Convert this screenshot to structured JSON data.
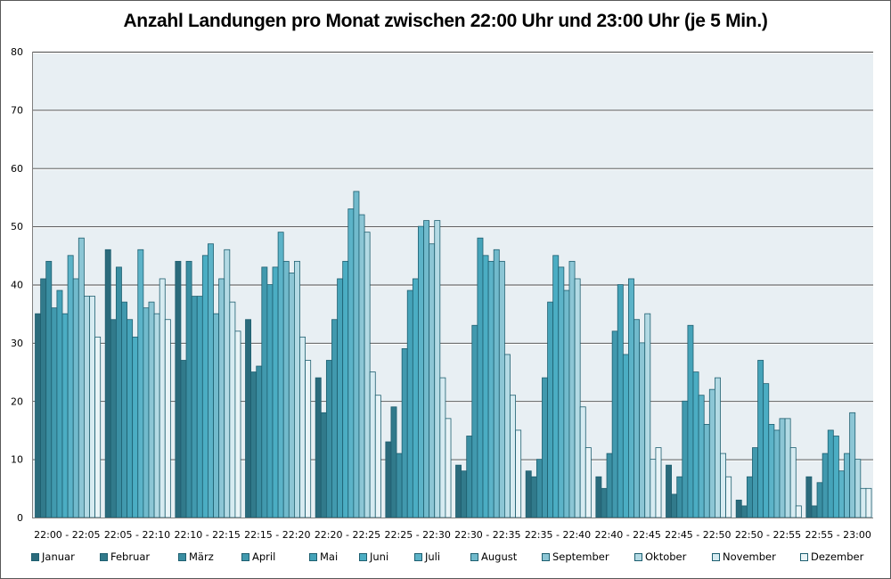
{
  "chart_data": {
    "type": "bar",
    "title": "Anzahl Landungen pro Monat zwischen 22:00 Uhr und 23:00 Uhr (je 5 Min.)",
    "xlabel": "",
    "ylabel": "",
    "ylim": [
      0,
      80
    ],
    "yticks": [
      0,
      10,
      20,
      30,
      40,
      50,
      60,
      70,
      80
    ],
    "grid": true,
    "legend_position": "bottom",
    "categories": [
      "22:00 - 22:05",
      "22:05 - 22:10",
      "22:10 - 22:15",
      "22:15 - 22:20",
      "22:20 - 22:25",
      "22:25 - 22:30",
      "22:30 - 22:35",
      "22:35 - 22:40",
      "22:40 - 22:45",
      "22:45 - 22:50",
      "22:50 - 22:55",
      "22:55 - 23:00"
    ],
    "series": [
      {
        "name": "Januar",
        "color": "#2b6b7c",
        "values": [
          35,
          46,
          44,
          34,
          24,
          13,
          9,
          8,
          7,
          9,
          3,
          7
        ]
      },
      {
        "name": "Februar",
        "color": "#317a8b",
        "values": [
          41,
          34,
          27,
          25,
          18,
          19,
          8,
          7,
          5,
          4,
          2,
          2
        ]
      },
      {
        "name": "März",
        "color": "#3a8ea2",
        "values": [
          44,
          43,
          44,
          26,
          27,
          11,
          14,
          10,
          11,
          7,
          7,
          6
        ]
      },
      {
        "name": "April",
        "color": "#4199ae",
        "values": [
          36,
          37,
          38,
          43,
          34,
          29,
          33,
          24,
          32,
          20,
          12,
          11
        ]
      },
      {
        "name": "Mai",
        "color": "#45a3b9",
        "values": [
          39,
          34,
          38,
          40,
          41,
          39,
          48,
          37,
          40,
          33,
          27,
          15
        ]
      },
      {
        "name": "Juni",
        "color": "#4badc3",
        "values": [
          35,
          31,
          45,
          43,
          44,
          41,
          45,
          45,
          28,
          25,
          23,
          14
        ]
      },
      {
        "name": "Juli",
        "color": "#5cb3c8",
        "values": [
          45,
          46,
          47,
          49,
          53,
          50,
          44,
          43,
          41,
          21,
          16,
          8
        ]
      },
      {
        "name": "August",
        "color": "#71bacc",
        "values": [
          41,
          36,
          35,
          44,
          56,
          51,
          46,
          39,
          34,
          16,
          15,
          11
        ]
      },
      {
        "name": "September",
        "color": "#8cc6d5",
        "values": [
          48,
          37,
          41,
          42,
          52,
          47,
          44,
          44,
          30,
          22,
          17,
          18
        ]
      },
      {
        "name": "Oktober",
        "color": "#b3dae4",
        "values": [
          38,
          35,
          46,
          44,
          49,
          51,
          28,
          41,
          35,
          24,
          17,
          10
        ]
      },
      {
        "name": "November",
        "color": "#d6ebf1",
        "values": [
          38,
          41,
          37,
          31,
          25,
          24,
          21,
          19,
          10,
          11,
          12,
          5
        ]
      },
      {
        "name": "Dezember",
        "color": "#e9f4f7",
        "values": [
          31,
          34,
          32,
          27,
          21,
          17,
          15,
          12,
          12,
          7,
          2,
          5
        ]
      }
    ]
  },
  "legend_labels": [
    "Januar",
    "Februar",
    "März",
    "April",
    "Mai",
    "Juni",
    "Juli",
    "August",
    "September",
    "Oktober",
    "November",
    "Dezember"
  ]
}
